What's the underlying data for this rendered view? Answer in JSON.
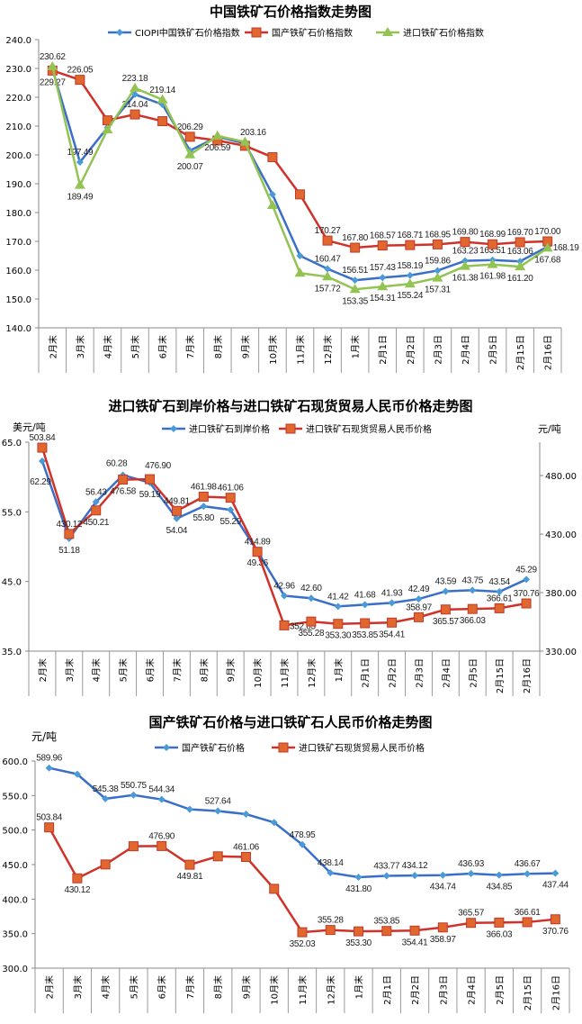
{
  "chart_data": [
    {
      "type": "line",
      "title": "中国铁矿石价格指数走势图",
      "categories": [
        "2月末",
        "3月末",
        "4月末",
        "5月末",
        "6月末",
        "7月末",
        "8月末",
        "9月末",
        "10月末",
        "11月末",
        "12月末",
        "1月末",
        "2月1日",
        "2月2日",
        "2月3日",
        "2月4日",
        "2月5日",
        "2月15日",
        "2月16日"
      ],
      "ylim": [
        140,
        240
      ],
      "yticks": [
        "140.0",
        "150.0",
        "160.0",
        "170.0",
        "180.0",
        "190.0",
        "200.0",
        "210.0",
        "220.0",
        "230.0",
        "240.0"
      ],
      "grid": false,
      "legend": "top",
      "series": [
        {
          "name": "CIOPI中国铁矿石价格指数",
          "color": "#3a6fc9",
          "marker": "diamond",
          "values": [
            229.8,
            197.49,
            209.5,
            221.0,
            217.5,
            201.5,
            206.3,
            204.0,
            186.3,
            165.0,
            160.47,
            156.51,
            157.43,
            158.19,
            159.86,
            163.23,
            163.51,
            163.06,
            168.19
          ],
          "labels": [
            null,
            "197.49",
            null,
            null,
            null,
            null,
            null,
            null,
            null,
            null,
            "160.47",
            "156.51",
            "157.43",
            "158.19",
            "159.86",
            "163.23",
            "163.51",
            "163.06",
            "168.19"
          ]
        },
        {
          "name": "国产铁矿石价格指数",
          "color": "#d0322a",
          "marker": "square",
          "values": [
            229.27,
            226.05,
            212.0,
            214.04,
            211.7,
            206.29,
            205.0,
            203.16,
            199.2,
            186.3,
            170.27,
            167.8,
            168.57,
            168.71,
            168.95,
            169.8,
            168.99,
            169.7,
            170.0
          ],
          "labels": [
            "229.27",
            "226.05",
            null,
            "214.04",
            null,
            "206.29",
            null,
            "203.16",
            null,
            null,
            "170.27",
            "167.80",
            "168.57",
            "168.71",
            "168.95",
            "169.80",
            "168.99",
            "169.70",
            "170.00"
          ]
        },
        {
          "name": "进口铁矿石价格指数",
          "color": "#92c353",
          "marker": "triangle",
          "values": [
            230.62,
            189.49,
            208.7,
            223.18,
            219.14,
            200.07,
            206.59,
            204.5,
            182.5,
            159.0,
            157.72,
            153.35,
            154.31,
            155.24,
            157.31,
            161.38,
            161.98,
            161.2,
            167.68
          ],
          "labels": [
            "230.62",
            "189.49",
            null,
            "223.18",
            "219.14",
            "200.07",
            "206.59",
            null,
            null,
            null,
            "157.72",
            "153.35",
            "154.31",
            "155.24",
            "157.31",
            "161.38",
            "161.98",
            "161.20",
            "167.68"
          ]
        }
      ]
    },
    {
      "type": "line",
      "title": "进口铁矿石到岸价格与进口铁矿石现货贸易人民币价格走势图",
      "categories": [
        "2月末",
        "3月末",
        "4月末",
        "5月末",
        "6月末",
        "7月末",
        "8月末",
        "9月末",
        "10月末",
        "11月末",
        "12月末",
        "1月末",
        "2月1日",
        "2月2日",
        "2月3日",
        "2月4日",
        "2月5日",
        "2月15日",
        "2月16日"
      ],
      "ylabel_left": "美元/吨",
      "ylabel_right": "元/吨",
      "ylim_left": [
        35,
        65
      ],
      "ylim_right": [
        330,
        508.5
      ],
      "yticks_left": [
        "35.0",
        "45.0",
        "55.0",
        "65.0"
      ],
      "yticks_right": [
        "330.00",
        "380.00",
        "430.00",
        "480.00"
      ],
      "grid": false,
      "legend": "top",
      "series": [
        {
          "name": "进口铁矿石到岸价格",
          "axis": "left",
          "color": "#3a6fc9",
          "marker": "diamond",
          "values": [
            62.29,
            51.18,
            56.43,
            60.28,
            59.19,
            54.04,
            55.8,
            55.29,
            49.36,
            42.96,
            42.6,
            41.42,
            41.68,
            41.93,
            42.49,
            43.59,
            43.75,
            43.54,
            45.29
          ],
          "labels": [
            "62.29",
            "51.18",
            "56.43",
            "60.28",
            "59.19",
            "54.04",
            "55.80",
            "55.29",
            "49.36",
            "42.96",
            "42.60",
            "41.42",
            "41.68",
            "41.93",
            "42.49",
            "43.59",
            "43.75",
            "43.54",
            "45.29"
          ]
        },
        {
          "name": "进口铁矿石现货贸易人民币价格",
          "axis": "right",
          "color": "#d0322a",
          "marker": "square",
          "values": [
            503.84,
            430.12,
            450.21,
            476.58,
            476.9,
            449.81,
            461.98,
            461.06,
            414.89,
            352.03,
            355.28,
            353.3,
            353.85,
            354.41,
            358.97,
            365.57,
            366.03,
            366.61,
            370.76
          ],
          "labels": [
            "503.84",
            "430.12",
            "450.21",
            "476.58",
            "476.90",
            "449.81",
            "461.98",
            "461.06",
            "414.89",
            "352.03",
            "355.28",
            "353.30",
            "353.85",
            "354.41",
            "358.97",
            "365.57",
            "366.03",
            "366.61",
            "370.76"
          ]
        }
      ]
    },
    {
      "type": "line",
      "title": "国产铁矿石价格与进口铁矿石人民币价格走势图",
      "categories": [
        "2月末",
        "3月末",
        "4月末",
        "5月末",
        "6月末",
        "7月末",
        "8月末",
        "9月末",
        "10月末",
        "11月末",
        "12月末",
        "1月末",
        "2月1日",
        "2月2日",
        "2月3日",
        "2月4日",
        "2月5日",
        "2月15日",
        "2月16日"
      ],
      "ylabel": "元/吨",
      "ylim": [
        300,
        600
      ],
      "yticks": [
        "300.0",
        "350.0",
        "400.0",
        "450.0",
        "500.0",
        "550.0",
        "600.0"
      ],
      "grid": false,
      "legend": "top",
      "series": [
        {
          "name": "国产铁矿石价格",
          "color": "#3a6fc9",
          "marker": "diamond",
          "values": [
            589.96,
            581.0,
            545.38,
            550.75,
            544.34,
            530.0,
            527.64,
            523.0,
            511.0,
            478.95,
            438.14,
            431.8,
            433.77,
            434.12,
            434.74,
            436.93,
            434.85,
            436.67,
            437.44
          ],
          "labels": [
            "589.96",
            null,
            "545.38",
            "550.75",
            "544.34",
            null,
            "527.64",
            null,
            null,
            "478.95",
            "438.14",
            "431.80",
            "433.77",
            "434.12",
            "434.74",
            "436.93",
            "434.85",
            "436.67",
            "437.44"
          ]
        },
        {
          "name": "进口铁矿石现货贸易人民币价格",
          "color": "#d0322a",
          "marker": "square",
          "values": [
            503.84,
            430.12,
            450.21,
            476.58,
            476.9,
            449.81,
            461.98,
            461.06,
            414.89,
            352.03,
            355.28,
            353.3,
            353.85,
            354.41,
            358.97,
            365.57,
            366.03,
            366.61,
            370.76
          ],
          "labels": [
            "503.84",
            "430.12",
            null,
            null,
            "476.90",
            "449.81",
            null,
            "461.06",
            null,
            "352.03",
            "355.28",
            "353.30",
            "353.85",
            "354.41",
            "358.97",
            "365.57",
            "366.03",
            "366.61",
            "370.76"
          ]
        }
      ]
    }
  ]
}
